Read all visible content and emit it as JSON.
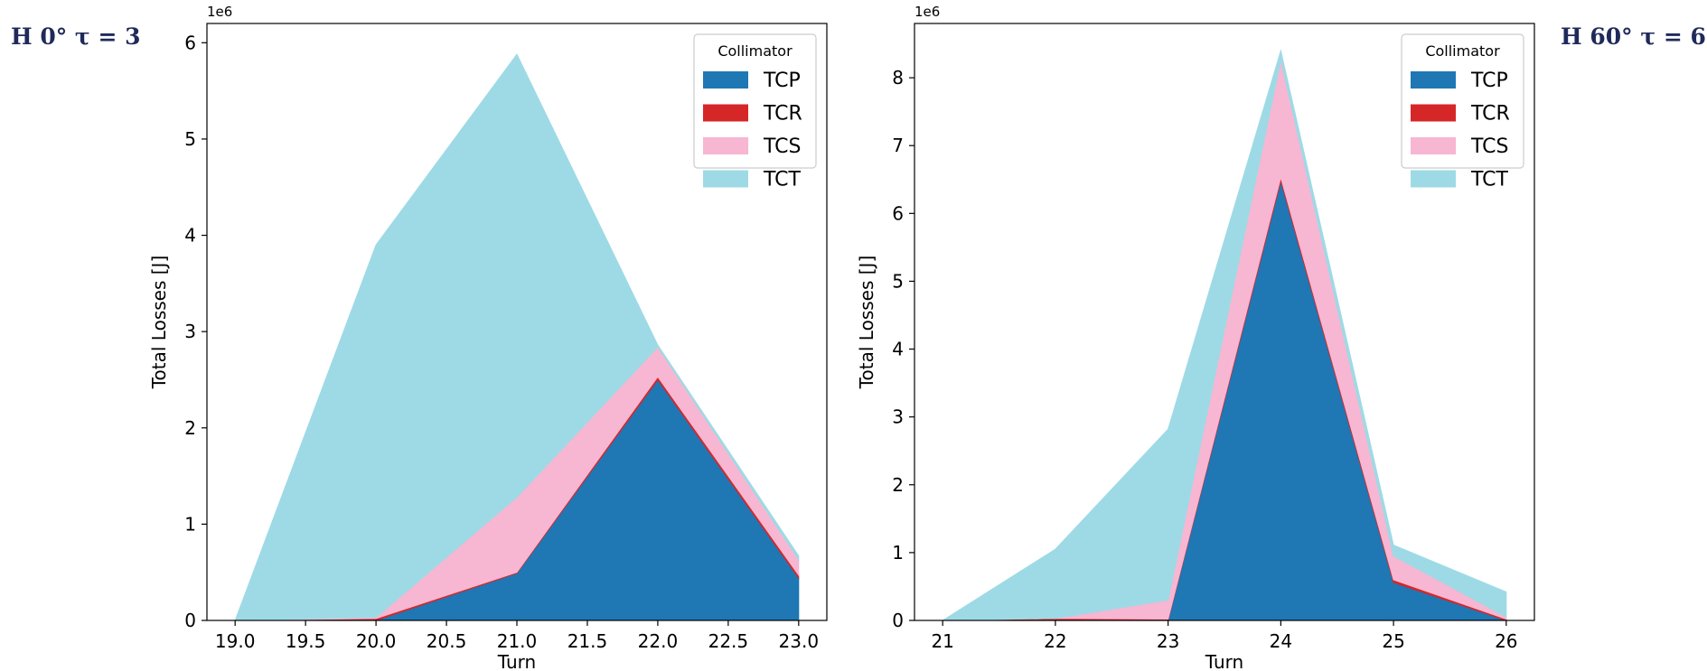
{
  "side_labels": {
    "left": "H 0° τ = 3",
    "right": "H 60° τ = 6"
  },
  "colors": {
    "TCP": "#1f77b4",
    "TCR": "#d62728",
    "TCS": "#f7b6d2",
    "TCT": "#9edae5"
  },
  "chart_data": [
    {
      "type": "area",
      "stacked": true,
      "xlabel": "Turn",
      "ylabel": "Total Losses [J]",
      "offset_text": "1e6",
      "xlim": [
        18.8,
        23.2
      ],
      "ylim": [
        0,
        6.2
      ],
      "xticks": [
        19.0,
        19.5,
        20.0,
        20.5,
        21.0,
        21.5,
        22.0,
        22.5,
        23.0
      ],
      "xtick_labels": [
        "19.0",
        "19.5",
        "20.0",
        "20.5",
        "21.0",
        "21.5",
        "22.0",
        "22.5",
        "23.0"
      ],
      "yticks": [
        0,
        1,
        2,
        3,
        4,
        5,
        6
      ],
      "ytick_labels": [
        "0",
        "1",
        "2",
        "3",
        "4",
        "5",
        "6"
      ],
      "x": [
        19,
        20,
        21,
        22,
        23
      ],
      "series": [
        {
          "name": "TCP",
          "values": [
            0,
            0,
            0.49,
            2.5,
            0.44
          ]
        },
        {
          "name": "TCR",
          "values": [
            0,
            0.02,
            0.01,
            0.03,
            0.03
          ]
        },
        {
          "name": "TCS",
          "values": [
            0,
            0.01,
            0.78,
            0.31,
            0.16
          ]
        },
        {
          "name": "TCT",
          "values": [
            0,
            3.87,
            4.6,
            0.02,
            0.04
          ]
        }
      ],
      "legend": {
        "title": "Collimator",
        "location": "upper right"
      }
    },
    {
      "type": "area",
      "stacked": true,
      "xlabel": "Turn",
      "ylabel": "Total Losses [J]",
      "offset_text": "1e6",
      "xlim": [
        20.75,
        26.25
      ],
      "ylim": [
        0,
        8.8
      ],
      "xticks": [
        21,
        22,
        23,
        24,
        25,
        26
      ],
      "xtick_labels": [
        "21",
        "22",
        "23",
        "24",
        "25",
        "26"
      ],
      "yticks": [
        0,
        1,
        2,
        3,
        4,
        5,
        6,
        7,
        8
      ],
      "ytick_labels": [
        "0",
        "1",
        "2",
        "3",
        "4",
        "5",
        "6",
        "7",
        "8"
      ],
      "x": [
        21,
        22,
        23,
        24,
        25,
        26
      ],
      "series": [
        {
          "name": "TCP",
          "values": [
            0,
            0,
            0,
            6.48,
            0.56,
            0
          ]
        },
        {
          "name": "TCR",
          "values": [
            0,
            0.03,
            0.02,
            0.05,
            0.04,
            0.02
          ]
        },
        {
          "name": "TCS",
          "values": [
            0,
            0,
            0.28,
            1.73,
            0.35,
            0.03
          ]
        },
        {
          "name": "TCT",
          "values": [
            0,
            1.02,
            2.52,
            0.14,
            0.16,
            0.37
          ]
        }
      ],
      "legend": {
        "title": "Collimator",
        "location": "upper right"
      }
    }
  ]
}
